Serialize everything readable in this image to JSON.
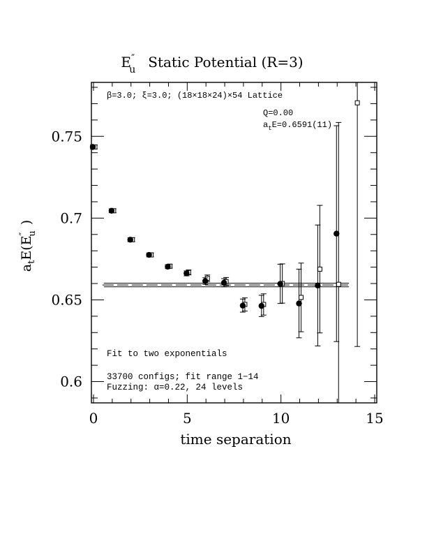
{
  "chart_data": {
    "type": "scatter",
    "title": "Static Potential (R=3)",
    "title_symbol": "E″u",
    "xlabel": "time separation",
    "ylabel": "atE(E″u)",
    "xlim": [
      0,
      15
    ],
    "ylim": [
      0.587,
      0.783
    ],
    "x_ticks": [
      0,
      5,
      10,
      15
    ],
    "x_tick_labels": [
      "0",
      "5",
      "10",
      "15"
    ],
    "y_ticks": [
      0.6,
      0.65,
      0.7,
      0.75
    ],
    "y_tick_labels": [
      "0.6",
      "0.65",
      "0.7",
      "0.75"
    ],
    "grid": false,
    "annotations": {
      "lattice": "β=3.0; ξ=3.0; (18×18×24)×54 Lattice",
      "q": "Q=0.00",
      "energy": "atE=0.6591(11)",
      "fit": "Fit to two exponentials",
      "configs": "33700 configs; fit range 1−14",
      "fuzzing": "Fuzzing: α=0.22, 24 levels"
    },
    "series": [
      {
        "marker": "filled-circle",
        "points": [
          {
            "x": 0,
            "y": 0.7435,
            "err": 0.0012
          },
          {
            "x": 1,
            "y": 0.7045,
            "err": 0.0012
          },
          {
            "x": 2,
            "y": 0.6868,
            "err": 0.0012
          },
          {
            "x": 3,
            "y": 0.6775,
            "err": 0.0012
          },
          {
            "x": 4,
            "y": 0.6703,
            "err": 0.0012
          },
          {
            "x": 5,
            "y": 0.6662,
            "err": 0.0015
          },
          {
            "x": 6,
            "y": 0.6615,
            "err": 0.002
          },
          {
            "x": 7,
            "y": 0.6605,
            "err": 0.0025
          },
          {
            "x": 8,
            "y": 0.6465,
            "err": 0.004
          },
          {
            "x": 9,
            "y": 0.6463,
            "err": 0.0065
          },
          {
            "x": 10,
            "y": 0.6598,
            "err": 0.012
          },
          {
            "x": 11,
            "y": 0.6478,
            "err": 0.021
          },
          {
            "x": 12,
            "y": 0.6588,
            "err": 0.037
          },
          {
            "x": 13,
            "y": 0.6905,
            "err": 0.066
          }
        ]
      },
      {
        "marker": "open-square",
        "points": [
          {
            "x": 0,
            "y": 0.7435,
            "err": 0.0012
          },
          {
            "x": 1,
            "y": 0.7045,
            "err": 0.0012
          },
          {
            "x": 2,
            "y": 0.6868,
            "err": 0.0012
          },
          {
            "x": 3,
            "y": 0.6775,
            "err": 0.0012
          },
          {
            "x": 4,
            "y": 0.6706,
            "err": 0.0012
          },
          {
            "x": 5,
            "y": 0.6668,
            "err": 0.0015
          },
          {
            "x": 6,
            "y": 0.6632,
            "err": 0.002
          },
          {
            "x": 7,
            "y": 0.6612,
            "err": 0.0025
          },
          {
            "x": 8,
            "y": 0.6472,
            "err": 0.004
          },
          {
            "x": 9,
            "y": 0.6472,
            "err": 0.0065
          },
          {
            "x": 10,
            "y": 0.66,
            "err": 0.012
          },
          {
            "x": 11,
            "y": 0.6515,
            "err": 0.021
          },
          {
            "x": 12,
            "y": 0.6688,
            "err": 0.039
          },
          {
            "x": 13,
            "y": 0.6595,
            "err": 0.099
          },
          {
            "x": 14,
            "y": 0.7705,
            "err": 0.149
          }
        ]
      }
    ],
    "fit_band": {
      "x_range": [
        1,
        14
      ],
      "center": 0.6591,
      "upper": 0.6602,
      "lower": 0.658
    }
  }
}
